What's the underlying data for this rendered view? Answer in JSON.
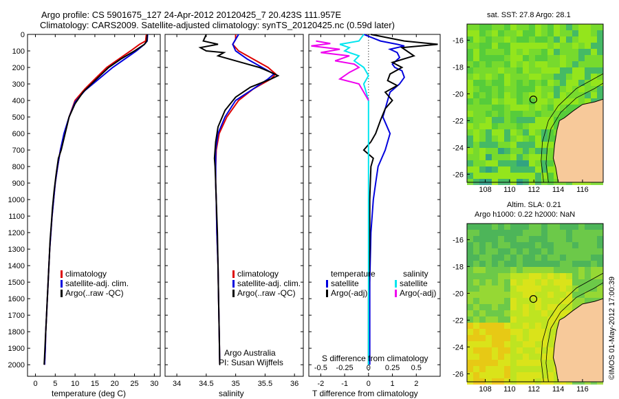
{
  "header": {
    "line1": "Argo profile: CS 5901675_127 24-Apr-2012 20120425_7 20.423S 111.957E",
    "line2": "Climatology: CARS2009. Satellite-adjusted climatology: synTS_20120425.nc (0.59d later)"
  },
  "colors": {
    "climatology": "#dd0000",
    "satellite": "#0000dd",
    "argo": "#000000",
    "sat_sal": "#00e5ee",
    "argo_sal": "#ee00ee"
  },
  "depth_ticks": [
    "0",
    "100",
    "200",
    "300",
    "400",
    "500",
    "600",
    "700",
    "800",
    "900",
    "1000",
    "1100",
    "1200",
    "1300",
    "1400",
    "1500",
    "1600",
    "1700",
    "1800",
    "1900",
    "2000"
  ],
  "chart_data": [
    {
      "type": "line",
      "xlabel": "temperature (deg C)",
      "xticks": [
        "0",
        "5",
        "10",
        "15",
        "20",
        "25",
        "30"
      ],
      "xlim": [
        -2,
        31.5
      ],
      "ylim": [
        0,
        2070
      ],
      "legend": [
        "climatology",
        "satellite-adj. clim.",
        "Argo(..raw -QC)"
      ],
      "series": [
        {
          "name": "climatology",
          "points": [
            [
              28,
              0
            ],
            [
              27.8,
              40
            ],
            [
              26.3,
              60
            ],
            [
              24,
              100
            ],
            [
              21,
              150
            ],
            [
              18,
              200
            ],
            [
              15,
              270
            ],
            [
              12.5,
              330
            ],
            [
              10,
              400
            ],
            [
              8.5,
              500
            ],
            [
              7.3,
              600
            ],
            [
              6.3,
              700
            ],
            [
              5.6,
              800
            ],
            [
              5,
              900
            ],
            [
              4.6,
              1000
            ],
            [
              4.2,
              1100
            ],
            [
              3.9,
              1200
            ],
            [
              3.6,
              1300
            ],
            [
              3.4,
              1400
            ],
            [
              3.2,
              1500
            ],
            [
              3,
              1600
            ],
            [
              2.8,
              1700
            ],
            [
              2.6,
              1800
            ],
            [
              2.5,
              1900
            ],
            [
              2.3,
              2000
            ]
          ]
        },
        {
          "name": "satellite-adj. clim.",
          "points": [
            [
              28.3,
              0
            ],
            [
              28.2,
              40
            ],
            [
              27.5,
              60
            ],
            [
              25.5,
              100
            ],
            [
              22.5,
              150
            ],
            [
              19.5,
              200
            ],
            [
              15.5,
              280
            ],
            [
              12.5,
              340
            ],
            [
              10,
              410
            ],
            [
              8.5,
              500
            ],
            [
              7.2,
              600
            ],
            [
              6.3,
              700
            ],
            [
              5.6,
              800
            ],
            [
              5,
              900
            ],
            [
              4.6,
              1000
            ],
            [
              4.2,
              1100
            ],
            [
              3.9,
              1200
            ],
            [
              3.6,
              1300
            ],
            [
              3.4,
              1400
            ],
            [
              3.2,
              1500
            ],
            [
              3,
              1600
            ],
            [
              2.8,
              1700
            ],
            [
              2.6,
              1800
            ],
            [
              2.5,
              1900
            ],
            [
              2.3,
              2000
            ]
          ]
        },
        {
          "name": "Argo(..raw -QC)",
          "points": [
            [
              28.2,
              0
            ],
            [
              28.1,
              40
            ],
            [
              27.5,
              60
            ],
            [
              25,
              100
            ],
            [
              21.5,
              150
            ],
            [
              18.5,
              200
            ],
            [
              15,
              280
            ],
            [
              12,
              350
            ],
            [
              10,
              420
            ],
            [
              8.5,
              500
            ],
            [
              7.5,
              600
            ],
            [
              6.5,
              700
            ],
            [
              5.8,
              750
            ],
            [
              5.2,
              850
            ],
            [
              4.7,
              950
            ],
            [
              4.3,
              1050
            ],
            [
              4,
              1150
            ],
            [
              3.7,
              1250
            ],
            [
              3.5,
              1350
            ],
            [
              3.3,
              1450
            ],
            [
              3.1,
              1550
            ],
            [
              2.9,
              1650
            ],
            [
              2.7,
              1750
            ],
            [
              2.5,
              1850
            ],
            [
              2.3,
              1950
            ],
            [
              2.2,
              2000
            ]
          ]
        }
      ]
    },
    {
      "type": "line",
      "xlabel": "salinity",
      "xticks": [
        "34",
        "34.5",
        "35",
        "35.5",
        "36"
      ],
      "xlim": [
        33.8,
        36.15
      ],
      "ylim": [
        0,
        2070
      ],
      "legend": [
        "climatology",
        "satellite-adj. clim.",
        "Argo(..raw -QC)"
      ],
      "annotation": [
        "Argo Australia",
        "PI: Susan Wijffels"
      ],
      "series": [
        {
          "name": "climatology",
          "points": [
            [
              35,
              0
            ],
            [
              35,
              30
            ],
            [
              34.95,
              60
            ],
            [
              35.05,
              100
            ],
            [
              35.3,
              150
            ],
            [
              35.55,
              200
            ],
            [
              35.68,
              240
            ],
            [
              35.6,
              270
            ],
            [
              35.3,
              330
            ],
            [
              35.05,
              400
            ],
            [
              34.85,
              500
            ],
            [
              34.72,
              600
            ],
            [
              34.67,
              700
            ],
            [
              34.66,
              800
            ],
            [
              34.66,
              900
            ],
            [
              34.67,
              1000
            ],
            [
              34.68,
              1200
            ],
            [
              34.7,
              1400
            ],
            [
              34.71,
              1600
            ],
            [
              34.72,
              1800
            ],
            [
              34.73,
              2000
            ]
          ]
        },
        {
          "name": "satellite-adj. clim.",
          "points": [
            [
              35.05,
              0
            ],
            [
              35,
              30
            ],
            [
              34.95,
              60
            ],
            [
              35,
              100
            ],
            [
              35.2,
              150
            ],
            [
              35.45,
              200
            ],
            [
              35.65,
              240
            ],
            [
              35.55,
              270
            ],
            [
              35.3,
              330
            ],
            [
              35.0,
              400
            ],
            [
              34.82,
              500
            ],
            [
              34.7,
              600
            ],
            [
              34.66,
              700
            ],
            [
              34.66,
              800
            ],
            [
              34.66,
              900
            ],
            [
              34.67,
              1000
            ],
            [
              34.68,
              1200
            ],
            [
              34.7,
              1400
            ],
            [
              34.71,
              1600
            ],
            [
              34.72,
              1800
            ],
            [
              34.73,
              2000
            ]
          ]
        },
        {
          "name": "Argo(..raw -QC)",
          "points": [
            [
              34.5,
              0
            ],
            [
              34.45,
              40
            ],
            [
              34.7,
              60
            ],
            [
              34.4,
              80
            ],
            [
              34.5,
              100
            ],
            [
              34.8,
              110
            ],
            [
              34.7,
              130
            ],
            [
              35.1,
              170
            ],
            [
              35.4,
              200
            ],
            [
              35.6,
              230
            ],
            [
              35.72,
              250
            ],
            [
              35.6,
              270
            ],
            [
              35.25,
              320
            ],
            [
              35.0,
              380
            ],
            [
              34.82,
              460
            ],
            [
              34.7,
              560
            ],
            [
              34.66,
              650
            ],
            [
              34.65,
              700
            ],
            [
              34.64,
              750
            ],
            [
              34.65,
              800
            ],
            [
              34.66,
              900
            ],
            [
              34.67,
              1000
            ],
            [
              34.69,
              1200
            ],
            [
              34.7,
              1400
            ],
            [
              34.71,
              1600
            ],
            [
              34.72,
              1800
            ],
            [
              34.73,
              2000
            ]
          ]
        }
      ]
    },
    {
      "type": "line",
      "xlabel": "T difference from climatology",
      "xlabel_top": "S difference from climatology",
      "xticks": [
        "-2",
        "-1",
        "0",
        "1",
        "2"
      ],
      "sticks": [
        "-0.5",
        "-0.25",
        "0",
        "0.25",
        "0.5"
      ],
      "xlim": [
        -2.5,
        3
      ],
      "ylim": [
        0,
        2070
      ],
      "legend_left_title": "temperature",
      "legend_right_title": "salinity",
      "legend_left": [
        "satellite",
        "Argo(-adj)"
      ],
      "legend_right": [
        "satellite",
        "Argo(-adj)"
      ],
      "series": [
        {
          "name": "T satellite",
          "points": [
            [
              -0.2,
              0
            ],
            [
              0.5,
              40
            ],
            [
              1.2,
              60
            ],
            [
              1.5,
              70
            ],
            [
              0.9,
              90
            ],
            [
              1.2,
              110
            ],
            [
              1.3,
              140
            ],
            [
              1.0,
              180
            ],
            [
              1.1,
              200
            ],
            [
              1.4,
              220
            ],
            [
              1.5,
              260
            ],
            [
              1.3,
              300
            ],
            [
              0.9,
              350
            ],
            [
              0.8,
              400
            ],
            [
              0.6,
              500
            ],
            [
              0.9,
              600
            ],
            [
              0.7,
              700
            ],
            [
              0.4,
              800
            ],
            [
              0.3,
              900
            ],
            [
              0.2,
              1000
            ],
            [
              0.1,
              1200
            ],
            [
              0.05,
              1500
            ],
            [
              0.05,
              1800
            ],
            [
              0.05,
              2000
            ]
          ]
        },
        {
          "name": "T Argo(-adj)",
          "points": [
            [
              0.1,
              0
            ],
            [
              1.5,
              40
            ],
            [
              2.9,
              60
            ],
            [
              1.4,
              80
            ],
            [
              1.6,
              100
            ],
            [
              1.9,
              130
            ],
            [
              1.0,
              170
            ],
            [
              1.4,
              200
            ],
            [
              0.9,
              240
            ],
            [
              0.8,
              280
            ],
            [
              1.2,
              310
            ],
            [
              0.7,
              350
            ],
            [
              1.0,
              400
            ],
            [
              0.7,
              450
            ],
            [
              0.5,
              520
            ],
            [
              0.3,
              600
            ],
            [
              0.1,
              650
            ],
            [
              -0.2,
              700
            ],
            [
              0.2,
              750
            ],
            [
              0.1,
              800
            ],
            [
              0.05,
              1000
            ],
            [
              0.05,
              1300
            ],
            [
              0.0,
              1600
            ],
            [
              0.0,
              2000
            ]
          ]
        },
        {
          "name": "S satellite",
          "points": [
            [
              -0.05,
              0
            ],
            [
              -0.1,
              40
            ],
            [
              -0.3,
              60
            ],
            [
              -0.2,
              80
            ],
            [
              -0.25,
              100
            ],
            [
              -0.1,
              130
            ],
            [
              -0.15,
              160
            ],
            [
              -0.05,
              200
            ],
            [
              0,
              250
            ],
            [
              -0.05,
              300
            ],
            [
              0,
              400
            ],
            [
              0,
              600
            ],
            [
              0,
              1000
            ],
            [
              0,
              1500
            ],
            [
              0,
              2000
            ]
          ]
        },
        {
          "name": "S Argo(-adj)",
          "points": [
            [
              -0.55,
              40
            ],
            [
              -0.4,
              55
            ],
            [
              -0.6,
              70
            ],
            [
              -0.3,
              90
            ],
            [
              -0.5,
              110
            ],
            [
              -0.2,
              130
            ],
            [
              -0.35,
              160
            ],
            [
              -0.15,
              180
            ],
            [
              -0.1,
              200
            ],
            [
              -0.2,
              230
            ],
            [
              -0.3,
              270
            ],
            [
              -0.1,
              300
            ],
            [
              -0.05,
              350
            ],
            [
              0,
              400
            ]
          ]
        }
      ]
    },
    {
      "type": "heatmap",
      "title": "sat. SST: 27.8 Argo: 28.1",
      "xticks": [
        "108",
        "110",
        "112",
        "114",
        "116"
      ],
      "yticks": [
        "-16",
        "-18",
        "-20",
        "-22",
        "-24",
        "-26"
      ],
      "xlim": [
        106.5,
        117.7
      ],
      "ylim": [
        -26.6,
        -14.8
      ],
      "marker": [
        111.957,
        -20.423
      ]
    },
    {
      "type": "heatmap",
      "title": "Altim. SLA: 0.21",
      "subtitle": "Argo h1000: 0.22 h2000: NaN",
      "xticks": [
        "108",
        "110",
        "112",
        "114",
        "116"
      ],
      "yticks": [
        "-16",
        "-18",
        "-20",
        "-22",
        "-24",
        "-26"
      ],
      "xlim": [
        106.5,
        117.7
      ],
      "ylim": [
        -26.6,
        -14.8
      ],
      "marker": [
        111.957,
        -20.423
      ]
    }
  ],
  "footer": {
    "stamp": "©IMOS 01-May-2012 17:00:39"
  }
}
